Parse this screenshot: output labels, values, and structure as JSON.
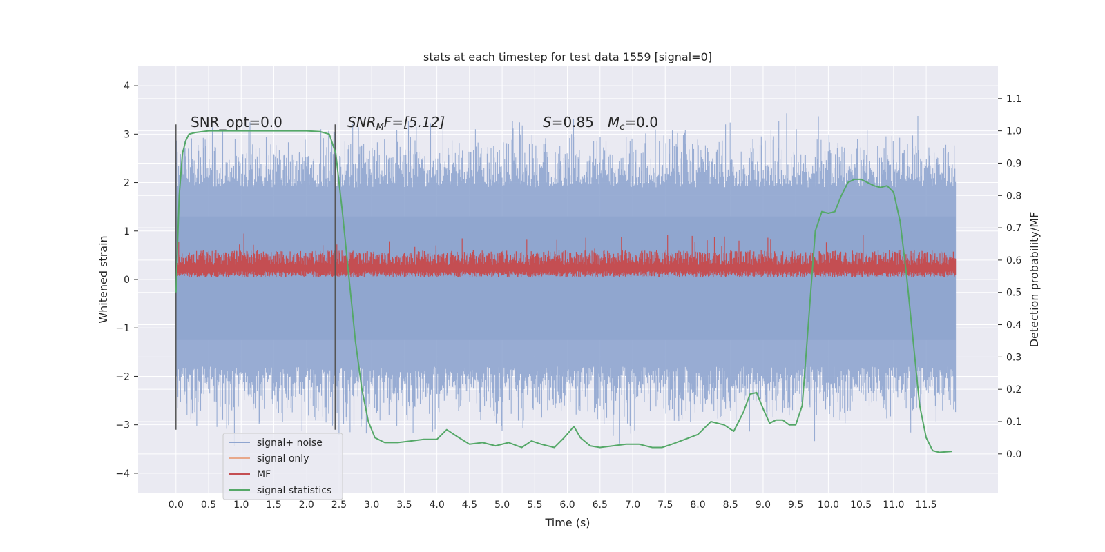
{
  "chart_data": {
    "type": "line",
    "title": "stats at each timestep for test data 1559 [signal=0]",
    "xlabel": "Time (s)",
    "ylabel": "Whitened strain",
    "y2label": "Detection probability/MF",
    "xlim": [
      -0.58,
      12.6
    ],
    "ylim": [
      -4.4,
      4.4
    ],
    "y2lim": [
      -0.12,
      1.2
    ],
    "grid": true,
    "legend_position": "lower-left",
    "x_ticks": [
      "0.0",
      "0.5",
      "1.0",
      "1.5",
      "2.0",
      "2.5",
      "3.0",
      "3.5",
      "4.0",
      "4.5",
      "5.0",
      "5.5",
      "6.0",
      "6.5",
      "7.0",
      "7.5",
      "8.0",
      "8.5",
      "9.0",
      "9.5",
      "10.0",
      "10.5",
      "11.0",
      "11.5"
    ],
    "y_ticks": [
      "4",
      "3",
      "2",
      "1",
      "0",
      "−1",
      "−2",
      "−3",
      "−4"
    ],
    "y2_ticks": [
      "1.1",
      "1.0",
      "0.9",
      "0.8",
      "0.7",
      "0.6",
      "0.5",
      "0.4",
      "0.3",
      "0.2",
      "0.1",
      "0.0"
    ],
    "annotations": {
      "snr_opt": "SNR_opt=0.0",
      "snr_mf_prefix": "SNR",
      "snr_mf_sub": "M",
      "snr_mf_rest": "F=[5.12]",
      "s_label": "S",
      "s_value": "=0.85",
      "mc_label": "M",
      "mc_sub": "c",
      "mc_value": "=0.0"
    },
    "vertical_markers": [
      0.0,
      2.44
    ],
    "series": [
      {
        "name": "signal+ noise",
        "color": "#8fa5cf",
        "axis": "left",
        "style": "dense noise between about -1.8 and 2.0 with spikes to ±4"
      },
      {
        "name": "signal only",
        "color": "#e8a88a",
        "axis": "left",
        "values": [
          0,
          0
        ]
      },
      {
        "name": "MF",
        "color": "#c44e52",
        "axis": "left",
        "style": "noise band between about 0.05 and 0.6, spikes to 1.0"
      },
      {
        "name": "signal statistics",
        "color": "#55a868",
        "axis": "right",
        "x": [
          0.0,
          0.05,
          0.1,
          0.15,
          0.2,
          0.3,
          0.5,
          1.0,
          1.5,
          2.0,
          2.2,
          2.35,
          2.45,
          2.55,
          2.65,
          2.75,
          2.85,
          2.95,
          3.05,
          3.2,
          3.4,
          3.6,
          3.8,
          4.0,
          4.15,
          4.3,
          4.5,
          4.7,
          4.9,
          5.1,
          5.3,
          5.45,
          5.6,
          5.8,
          5.95,
          6.1,
          6.2,
          6.35,
          6.5,
          6.7,
          6.9,
          7.1,
          7.3,
          7.45,
          7.6,
          7.8,
          8.0,
          8.2,
          8.4,
          8.55,
          8.7,
          8.8,
          8.9,
          9.0,
          9.1,
          9.2,
          9.3,
          9.4,
          9.5,
          9.6,
          9.7,
          9.8,
          9.9,
          10.0,
          10.1,
          10.2,
          10.3,
          10.4,
          10.5,
          10.6,
          10.7,
          10.8,
          10.9,
          11.0,
          11.1,
          11.2,
          11.3,
          11.4,
          11.5,
          11.6,
          11.7,
          11.9
        ],
        "y": [
          0.5,
          0.8,
          0.93,
          0.97,
          0.99,
          0.995,
          1.0,
          1.0,
          1.0,
          1.0,
          0.998,
          0.99,
          0.93,
          0.75,
          0.55,
          0.35,
          0.2,
          0.1,
          0.05,
          0.035,
          0.035,
          0.04,
          0.045,
          0.045,
          0.075,
          0.055,
          0.03,
          0.035,
          0.025,
          0.035,
          0.02,
          0.04,
          0.03,
          0.02,
          0.05,
          0.085,
          0.05,
          0.025,
          0.02,
          0.025,
          0.03,
          0.03,
          0.02,
          0.02,
          0.03,
          0.045,
          0.06,
          0.1,
          0.09,
          0.07,
          0.13,
          0.185,
          0.19,
          0.14,
          0.095,
          0.105,
          0.105,
          0.09,
          0.09,
          0.15,
          0.42,
          0.69,
          0.75,
          0.745,
          0.75,
          0.8,
          0.84,
          0.85,
          0.85,
          0.84,
          0.83,
          0.825,
          0.83,
          0.81,
          0.72,
          0.55,
          0.35,
          0.15,
          0.05,
          0.01,
          0.005,
          0.008
        ]
      }
    ]
  }
}
